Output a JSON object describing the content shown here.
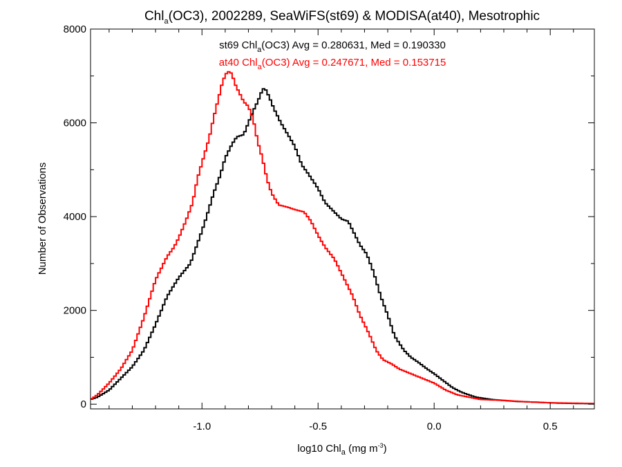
{
  "chart_data": {
    "type": "line",
    "step": true,
    "title": {
      "pre": "Chl",
      "sub": "a",
      "post": "(OC3), 2002289, SeaWiFS(st69) & MODISA(at40), Mesotrophic"
    },
    "xlabel": {
      "pre": "log10 Chl",
      "sub": "a",
      "mid": " (mg m",
      "sup": "-3",
      "post": ")"
    },
    "ylabel": "Number of Observations",
    "xlim": [
      -1.48,
      0.69
    ],
    "ylim": [
      -100,
      8000
    ],
    "xticks": [
      {
        "v": -1.0,
        "label": "-1.0"
      },
      {
        "v": -0.5,
        "label": "-0.5"
      },
      {
        "v": 0.0,
        "label": "0.0"
      },
      {
        "v": 0.5,
        "label": "0.5"
      }
    ],
    "yticks": [
      {
        "v": 0,
        "label": "0"
      },
      {
        "v": 2000,
        "label": "2000"
      },
      {
        "v": 4000,
        "label": "4000"
      },
      {
        "v": 6000,
        "label": "6000"
      },
      {
        "v": 8000,
        "label": "8000"
      }
    ],
    "annotations": [
      {
        "pre": "st69 Chl",
        "sub": "a",
        "post": "(OC3) Avg = 0.280631, Med = 0.190330",
        "color": "#000000"
      },
      {
        "pre": "at40 Chl",
        "sub": "a",
        "post": "(OC3) Avg = 0.247671, Med = 0.153715",
        "color": "#ff0000"
      }
    ],
    "series": [
      {
        "color": "#000000",
        "points": [
          [
            -1.48,
            100
          ],
          [
            -1.45,
            150
          ],
          [
            -1.4,
            300
          ],
          [
            -1.35,
            550
          ],
          [
            -1.3,
            800
          ],
          [
            -1.25,
            1150
          ],
          [
            -1.2,
            1700
          ],
          [
            -1.15,
            2300
          ],
          [
            -1.1,
            2700
          ],
          [
            -1.05,
            3000
          ],
          [
            -1.0,
            3700
          ],
          [
            -0.98,
            4000
          ],
          [
            -0.95,
            4500
          ],
          [
            -0.92,
            4900
          ],
          [
            -0.9,
            5250
          ],
          [
            -0.87,
            5550
          ],
          [
            -0.85,
            5700
          ],
          [
            -0.82,
            5750
          ],
          [
            -0.8,
            6000
          ],
          [
            -0.78,
            6250
          ],
          [
            -0.76,
            6450
          ],
          [
            -0.74,
            6700
          ],
          [
            -0.73,
            6750
          ],
          [
            -0.71,
            6550
          ],
          [
            -0.69,
            6300
          ],
          [
            -0.66,
            6000
          ],
          [
            -0.63,
            5750
          ],
          [
            -0.6,
            5500
          ],
          [
            -0.57,
            5100
          ],
          [
            -0.54,
            4900
          ],
          [
            -0.5,
            4600
          ],
          [
            -0.47,
            4300
          ],
          [
            -0.44,
            4150
          ],
          [
            -0.4,
            3950
          ],
          [
            -0.37,
            3900
          ],
          [
            -0.35,
            3700
          ],
          [
            -0.32,
            3400
          ],
          [
            -0.29,
            3200
          ],
          [
            -0.26,
            2800
          ],
          [
            -0.23,
            2300
          ],
          [
            -0.2,
            1900
          ],
          [
            -0.17,
            1450
          ],
          [
            -0.13,
            1150
          ],
          [
            -0.1,
            1000
          ],
          [
            -0.07,
            900
          ],
          [
            -0.03,
            750
          ],
          [
            0.0,
            650
          ],
          [
            0.04,
            500
          ],
          [
            0.08,
            350
          ],
          [
            0.12,
            250
          ],
          [
            0.18,
            150
          ],
          [
            0.25,
            100
          ],
          [
            0.35,
            60
          ],
          [
            0.45,
            40
          ],
          [
            0.55,
            20
          ],
          [
            0.69,
            10
          ]
        ]
      },
      {
        "color": "#ff0000",
        "points": [
          [
            -1.48,
            100
          ],
          [
            -1.45,
            200
          ],
          [
            -1.4,
            450
          ],
          [
            -1.35,
            750
          ],
          [
            -1.3,
            1150
          ],
          [
            -1.25,
            1850
          ],
          [
            -1.2,
            2650
          ],
          [
            -1.15,
            3150
          ],
          [
            -1.12,
            3350
          ],
          [
            -1.1,
            3550
          ],
          [
            -1.07,
            3900
          ],
          [
            -1.04,
            4300
          ],
          [
            -1.02,
            4800
          ],
          [
            -1.0,
            5150
          ],
          [
            -0.97,
            5650
          ],
          [
            -0.95,
            6100
          ],
          [
            -0.93,
            6500
          ],
          [
            -0.91,
            6900
          ],
          [
            -0.89,
            7100
          ],
          [
            -0.87,
            7050
          ],
          [
            -0.86,
            6850
          ],
          [
            -0.84,
            6650
          ],
          [
            -0.82,
            6450
          ],
          [
            -0.8,
            6350
          ],
          [
            -0.78,
            6100
          ],
          [
            -0.76,
            5600
          ],
          [
            -0.74,
            5250
          ],
          [
            -0.72,
            4800
          ],
          [
            -0.7,
            4500
          ],
          [
            -0.67,
            4250
          ],
          [
            -0.63,
            4200
          ],
          [
            -0.6,
            4150
          ],
          [
            -0.56,
            4100
          ],
          [
            -0.53,
            3900
          ],
          [
            -0.5,
            3600
          ],
          [
            -0.47,
            3350
          ],
          [
            -0.43,
            3100
          ],
          [
            -0.39,
            2700
          ],
          [
            -0.35,
            2300
          ],
          [
            -0.32,
            1900
          ],
          [
            -0.28,
            1500
          ],
          [
            -0.25,
            1150
          ],
          [
            -0.22,
            950
          ],
          [
            -0.18,
            850
          ],
          [
            -0.15,
            750
          ],
          [
            -0.1,
            650
          ],
          [
            -0.05,
            550
          ],
          [
            0.0,
            450
          ],
          [
            0.05,
            300
          ],
          [
            0.1,
            200
          ],
          [
            0.15,
            150
          ],
          [
            0.2,
            100
          ],
          [
            0.3,
            80
          ],
          [
            0.4,
            50
          ],
          [
            0.5,
            30
          ],
          [
            0.69,
            15
          ]
        ]
      }
    ]
  }
}
